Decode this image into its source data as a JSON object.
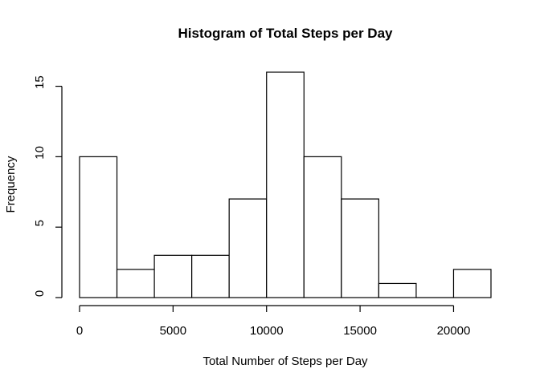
{
  "chart_data": {
    "type": "bar",
    "title": "Histogram of Total Steps per Day",
    "xlabel": "Total Number of Steps per Day",
    "ylabel": "Frequency",
    "bin_edges": [
      0,
      2000,
      4000,
      6000,
      8000,
      10000,
      12000,
      14000,
      16000,
      18000,
      20000,
      22000
    ],
    "values": [
      10,
      2,
      3,
      3,
      7,
      16,
      10,
      7,
      1,
      0,
      2
    ],
    "xlim": [
      0,
      22000
    ],
    "ylim": [
      0,
      16
    ],
    "x_ticks": [
      0,
      5000,
      10000,
      15000,
      20000
    ],
    "x_tick_labels": [
      "0",
      "5000",
      "10000",
      "15000",
      "20000"
    ],
    "y_ticks": [
      0,
      5,
      10,
      15
    ],
    "y_tick_labels": [
      "0",
      "5",
      "10",
      "15"
    ],
    "grid": false,
    "legend": "none",
    "bar_fill": "#ffffff",
    "bar_stroke": "#000000"
  }
}
